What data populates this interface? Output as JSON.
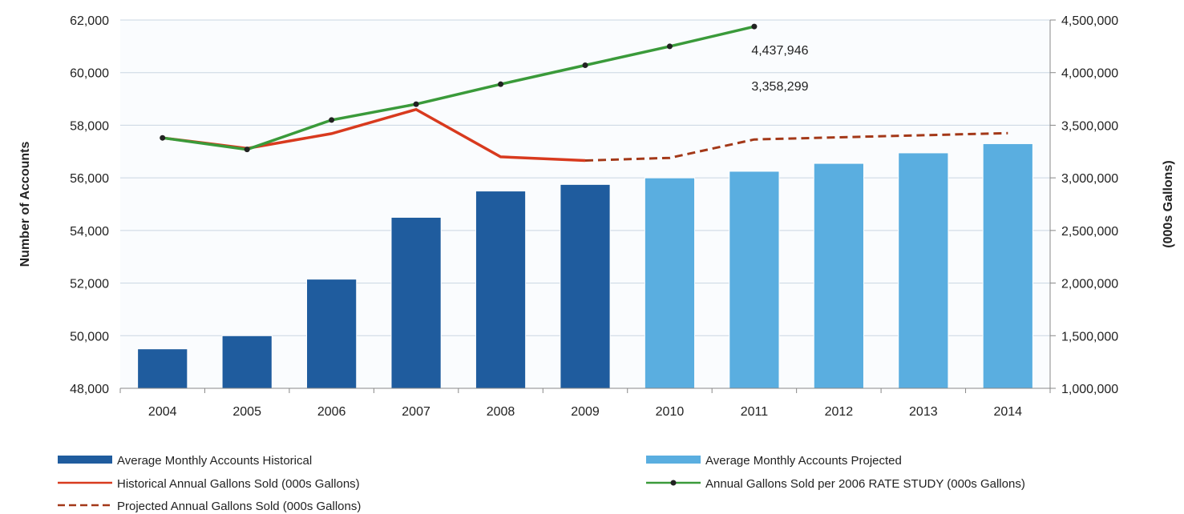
{
  "chart_data": {
    "type": "bar",
    "categories": [
      "2004",
      "2005",
      "2006",
      "2007",
      "2008",
      "2009",
      "2010",
      "2011",
      "2012",
      "2013",
      "2014"
    ],
    "ylabel": "Number of Accounts",
    "y2label": "(000s Gallons)",
    "ylim": [
      48000,
      62000
    ],
    "y2lim": [
      1000000,
      4500000
    ],
    "yticks": [
      "48,000",
      "50,000",
      "52,000",
      "54,000",
      "56,000",
      "58,000",
      "60,000",
      "62,000"
    ],
    "y2ticks": [
      "1,000,000",
      "1,500,000",
      "2,000,000",
      "2,500,000",
      "3,000,000",
      "3,500,000",
      "4,000,000",
      "4,500,000"
    ],
    "grid": true,
    "legend_position": "bottom",
    "annotations": [
      {
        "text": "4,437,946",
        "category": "2011",
        "y2": 4220000
      },
      {
        "text": "3,358,299",
        "category": "2011",
        "y2": 3875000
      }
    ],
    "series": [
      {
        "name": "Average Monthly Accounts Historical",
        "type": "bar",
        "axis": "left",
        "color": "#1f5c9e",
        "values": [
          49500,
          50000,
          52150,
          54500,
          55500,
          55750,
          null,
          null,
          null,
          null,
          null
        ]
      },
      {
        "name": "Average Monthly Accounts Projected",
        "type": "bar",
        "axis": "left",
        "color": "#5aaee0",
        "values": [
          null,
          null,
          null,
          null,
          null,
          null,
          56000,
          56250,
          56550,
          56950,
          57300
        ]
      },
      {
        "name": "Historical Annual Gallons Sold (000s  Gallons)",
        "type": "line",
        "axis": "right",
        "color": "#d83a1e",
        "values": [
          3380000,
          3280000,
          3420000,
          3650000,
          3200000,
          3165000,
          null,
          null,
          null,
          null,
          null
        ]
      },
      {
        "name": "Projected Annual Gallons Sold (000s  Gallons)",
        "type": "line",
        "style": "dashed",
        "axis": "right",
        "color": "#a33818",
        "values": [
          null,
          null,
          null,
          null,
          null,
          3165000,
          3190000,
          3365000,
          3385000,
          3405000,
          3425000
        ]
      },
      {
        "name": "Annual Gallons Sold per 2006 RATE STUDY (000s  Gallons)",
        "type": "line",
        "markers": true,
        "axis": "right",
        "color": "#3a9a3a",
        "values": [
          3380000,
          3270000,
          3550000,
          3700000,
          3890000,
          4070000,
          4250000,
          4437946,
          null,
          null,
          null
        ]
      }
    ]
  }
}
